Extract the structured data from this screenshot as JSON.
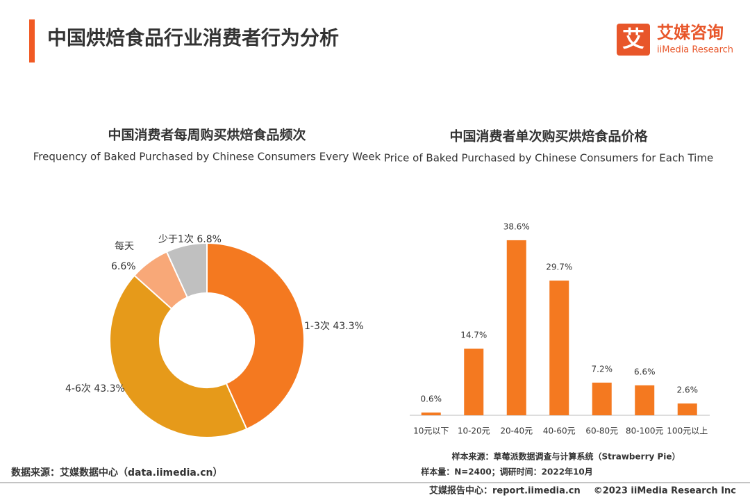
{
  "header": {
    "title": "中国烘焙食品行业消费者行为分析",
    "logo_mark": "艾",
    "logo_name": "艾媒咨询",
    "logo_sub": "iiMedia Research"
  },
  "chart_data": [
    {
      "type": "donut",
      "title": "中国消费者每周购买烘焙食品频次",
      "subtitle": "Frequency of Baked Purchased by Chinese Consumers Every Week",
      "categories": [
        "1-3次",
        "4-6次",
        "每天",
        "少于1次"
      ],
      "values": [
        43.3,
        43.3,
        6.6,
        6.8
      ],
      "value_labels": [
        "43.3%",
        "43.3%",
        "6.6%",
        "6.8%"
      ],
      "colors": [
        "#f47920",
        "#e69a1a",
        "#f8a878",
        "#c0c0c0"
      ]
    },
    {
      "type": "bar",
      "title": "中国消费者单次购买烘焙食品价格",
      "subtitle": "Price of Baked Purchased by Chinese Consumers for Each Time",
      "categories": [
        "10元以下",
        "10-20元",
        "20-40元",
        "40-60元",
        "60-80元",
        "80-100元",
        "100元以上"
      ],
      "values": [
        0.6,
        14.7,
        38.6,
        29.7,
        7.2,
        6.6,
        2.6
      ],
      "value_labels": [
        "0.6%",
        "14.7%",
        "38.6%",
        "29.7%",
        "7.2%",
        "6.6%",
        "2.6%"
      ],
      "color": "#f47920",
      "notes": [
        "样本来源：草莓派数据调查与计算系统（Strawberry Pie）",
        "样本量：N=2400；调研时间：2022年10月"
      ]
    }
  ],
  "footer": {
    "source": "数据来源：艾媒数据中心（data.iimedia.cn）",
    "report": "艾媒报告中心：report.iimedia.cn",
    "copyright": "©2023 iiMedia Research Inc"
  }
}
